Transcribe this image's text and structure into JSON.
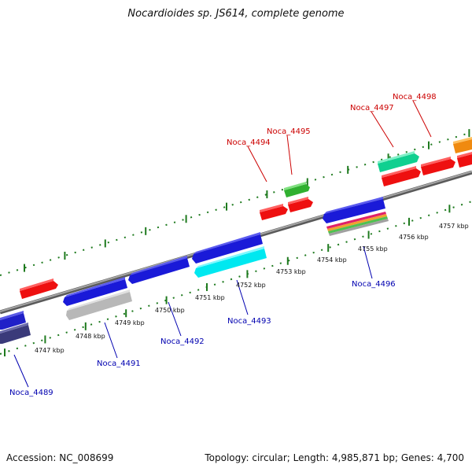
{
  "title": "Nocardioides sp. JS614, complete genome",
  "footer": {
    "accession": "Accession: NC_008699",
    "summary": "Topology: circular; Length: 4,985,871 bp; Genes: 4,700"
  },
  "scale_labels": [
    "4747 kbp",
    "4748 kbp",
    "4749 kbp",
    "4750 kbp",
    "4751 kbp",
    "4752 kbp",
    "4753 kbp",
    "4754 kbp",
    "4755 kbp",
    "4756 kbp",
    "4757 kbp"
  ],
  "gene_labels": {
    "noca_4489": "Noca_4489",
    "noca_4491": "Noca_4491",
    "noca_4492": "Noca_4492",
    "noca_4493": "Noca_4493",
    "noca_4494": "Noca_4494",
    "noca_4495": "Noca_4495",
    "noca_4496": "Noca_4496",
    "noca_4497": "Noca_4497",
    "noca_4498": "Noca_4498"
  },
  "colors": {
    "forward_label": "#cc0000",
    "reverse_label": "#0000b0",
    "tick": "#1e7a1e",
    "backbone": "#8c8c8c"
  }
}
